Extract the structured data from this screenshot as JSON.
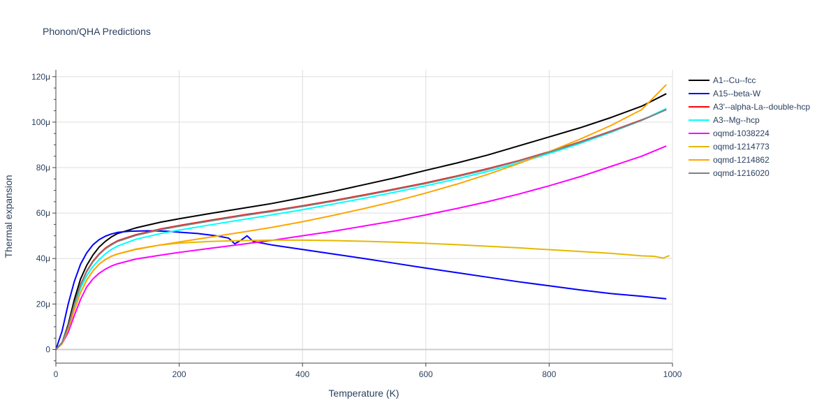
{
  "chart_data": {
    "type": "line",
    "title": "Phonon/QHA Predictions",
    "xlabel": "Temperature (K)",
    "ylabel": "Thermal expansion",
    "xlim": [
      0,
      1000
    ],
    "ylim": [
      -6,
      123
    ],
    "x_ticks": [
      0,
      200,
      400,
      600,
      800,
      1000
    ],
    "x_tick_labels": [
      "0",
      "200",
      "400",
      "600",
      "800",
      "1000"
    ],
    "y_ticks": [
      0,
      20,
      40,
      60,
      80,
      100,
      120
    ],
    "y_tick_labels": [
      "0",
      "20μ",
      "40μ",
      "60μ",
      "80μ",
      "100μ",
      "120μ"
    ],
    "grid": true,
    "legend_position": "right",
    "series": [
      {
        "name": "A1--Cu--fcc",
        "color": "#000000",
        "points": [
          [
            0,
            0
          ],
          [
            10,
            3
          ],
          [
            20,
            11
          ],
          [
            30,
            22
          ],
          [
            40,
            31
          ],
          [
            50,
            37
          ],
          [
            60,
            41.5
          ],
          [
            70,
            45
          ],
          [
            80,
            47.5
          ],
          [
            90,
            49.5
          ],
          [
            100,
            51
          ],
          [
            130,
            53.5
          ],
          [
            170,
            56
          ],
          [
            200,
            57.5
          ],
          [
            250,
            59.8
          ],
          [
            300,
            62
          ],
          [
            350,
            64.2
          ],
          [
            400,
            66.8
          ],
          [
            450,
            69.5
          ],
          [
            500,
            72.5
          ],
          [
            550,
            75.5
          ],
          [
            600,
            78.8
          ],
          [
            650,
            82
          ],
          [
            700,
            85.5
          ],
          [
            750,
            89.5
          ],
          [
            800,
            93.5
          ],
          [
            850,
            97.5
          ],
          [
            900,
            102
          ],
          [
            950,
            107
          ],
          [
            990,
            112.5
          ]
        ]
      },
      {
        "name": "A15--beta-W",
        "color": "#0000ff",
        "points": [
          [
            0,
            0
          ],
          [
            10,
            8
          ],
          [
            20,
            20
          ],
          [
            30,
            30
          ],
          [
            40,
            37.5
          ],
          [
            50,
            42.5
          ],
          [
            60,
            46
          ],
          [
            70,
            48.3
          ],
          [
            80,
            49.8
          ],
          [
            90,
            50.8
          ],
          [
            100,
            51.5
          ],
          [
            120,
            52
          ],
          [
            150,
            52.2
          ],
          [
            180,
            52
          ],
          [
            200,
            51.6
          ],
          [
            230,
            51
          ],
          [
            260,
            50
          ],
          [
            280,
            49
          ],
          [
            290,
            46.5
          ],
          [
            300,
            48
          ],
          [
            310,
            50
          ],
          [
            320,
            47.5
          ],
          [
            350,
            46
          ],
          [
            400,
            44
          ],
          [
            450,
            42
          ],
          [
            500,
            40
          ],
          [
            550,
            37.9
          ],
          [
            600,
            35.8
          ],
          [
            650,
            33.8
          ],
          [
            700,
            31.8
          ],
          [
            750,
            29.8
          ],
          [
            800,
            28
          ],
          [
            850,
            26.2
          ],
          [
            900,
            24.6
          ],
          [
            950,
            23.4
          ],
          [
            990,
            22.3
          ]
        ]
      },
      {
        "name": "A3'--alpha-La--double-hcp",
        "color": "#ff0000",
        "points": [
          [
            0,
            0
          ],
          [
            10,
            3
          ],
          [
            20,
            10
          ],
          [
            30,
            20
          ],
          [
            40,
            28.5
          ],
          [
            50,
            34.5
          ],
          [
            60,
            38.8
          ],
          [
            70,
            42
          ],
          [
            80,
            44.5
          ],
          [
            90,
            46.3
          ],
          [
            100,
            47.8
          ],
          [
            130,
            50.5
          ],
          [
            170,
            53
          ],
          [
            200,
            54.5
          ],
          [
            250,
            56.8
          ],
          [
            300,
            59
          ],
          [
            350,
            61
          ],
          [
            400,
            63.2
          ],
          [
            450,
            65.5
          ],
          [
            500,
            68
          ],
          [
            550,
            70.6
          ],
          [
            600,
            73.3
          ],
          [
            650,
            76.3
          ],
          [
            700,
            79.5
          ],
          [
            750,
            83
          ],
          [
            800,
            87
          ],
          [
            850,
            91.3
          ],
          [
            900,
            96
          ],
          [
            950,
            101
          ],
          [
            990,
            105.5
          ]
        ]
      },
      {
        "name": "A3--Mg--hcp",
        "color": "#00ffff",
        "points": [
          [
            0,
            0
          ],
          [
            10,
            3
          ],
          [
            20,
            10
          ],
          [
            30,
            19
          ],
          [
            40,
            27
          ],
          [
            50,
            32.5
          ],
          [
            60,
            36.5
          ],
          [
            70,
            39.5
          ],
          [
            80,
            42
          ],
          [
            90,
            44
          ],
          [
            100,
            45.5
          ],
          [
            130,
            48.5
          ],
          [
            170,
            51
          ],
          [
            200,
            52.5
          ],
          [
            250,
            54.8
          ],
          [
            300,
            57
          ],
          [
            350,
            59.2
          ],
          [
            400,
            61.5
          ],
          [
            450,
            64
          ],
          [
            500,
            66.5
          ],
          [
            550,
            69.2
          ],
          [
            600,
            72
          ],
          [
            650,
            75
          ],
          [
            700,
            78.3
          ],
          [
            750,
            82
          ],
          [
            800,
            86.2
          ],
          [
            850,
            90.6
          ],
          [
            900,
            95.5
          ],
          [
            950,
            100.8
          ],
          [
            990,
            106
          ]
        ]
      },
      {
        "name": "oqmd-1038224",
        "color": "#ff00ff",
        "points": [
          [
            0,
            0
          ],
          [
            10,
            2.5
          ],
          [
            20,
            7.5
          ],
          [
            30,
            15
          ],
          [
            40,
            22
          ],
          [
            50,
            27.5
          ],
          [
            60,
            31
          ],
          [
            70,
            33.5
          ],
          [
            80,
            35.3
          ],
          [
            90,
            36.7
          ],
          [
            100,
            37.7
          ],
          [
            130,
            39.8
          ],
          [
            170,
            41.5
          ],
          [
            200,
            42.7
          ],
          [
            250,
            44.5
          ],
          [
            300,
            46.2
          ],
          [
            350,
            48
          ],
          [
            400,
            50
          ],
          [
            450,
            52
          ],
          [
            500,
            54.3
          ],
          [
            550,
            56.6
          ],
          [
            600,
            59.2
          ],
          [
            650,
            62
          ],
          [
            700,
            65
          ],
          [
            750,
            68.3
          ],
          [
            800,
            72
          ],
          [
            850,
            76
          ],
          [
            900,
            80.5
          ],
          [
            950,
            85
          ],
          [
            990,
            89.5
          ]
        ]
      },
      {
        "name": "oqmd-1214773",
        "color": "#e6b800",
        "points": [
          [
            0,
            0
          ],
          [
            10,
            2.5
          ],
          [
            20,
            9
          ],
          [
            30,
            17.5
          ],
          [
            40,
            25
          ],
          [
            50,
            30.5
          ],
          [
            60,
            34.5
          ],
          [
            70,
            37.5
          ],
          [
            80,
            39.5
          ],
          [
            90,
            41
          ],
          [
            100,
            42
          ],
          [
            130,
            44.2
          ],
          [
            170,
            46
          ],
          [
            200,
            46.8
          ],
          [
            250,
            47.5
          ],
          [
            300,
            47.9
          ],
          [
            350,
            48.1
          ],
          [
            400,
            48.1
          ],
          [
            450,
            47.9
          ],
          [
            500,
            47.6
          ],
          [
            550,
            47.2
          ],
          [
            600,
            46.7
          ],
          [
            650,
            46.1
          ],
          [
            700,
            45.4
          ],
          [
            750,
            44.7
          ],
          [
            800,
            43.9
          ],
          [
            850,
            43.1
          ],
          [
            900,
            42.3
          ],
          [
            950,
            41.2
          ],
          [
            970,
            41
          ],
          [
            985,
            40.2
          ],
          [
            995,
            41.3
          ]
        ]
      },
      {
        "name": "oqmd-1214862",
        "color": "#ffa500",
        "points": [
          [
            0,
            0
          ],
          [
            10,
            2.5
          ],
          [
            20,
            9
          ],
          [
            30,
            17.5
          ],
          [
            40,
            25
          ],
          [
            50,
            30.5
          ],
          [
            60,
            34.5
          ],
          [
            70,
            37.5
          ],
          [
            80,
            39.5
          ],
          [
            90,
            41
          ],
          [
            100,
            42
          ],
          [
            130,
            44
          ],
          [
            170,
            46
          ],
          [
            200,
            47.3
          ],
          [
            250,
            49.4
          ],
          [
            300,
            51.5
          ],
          [
            350,
            53.7
          ],
          [
            400,
            56.2
          ],
          [
            450,
            59
          ],
          [
            500,
            62
          ],
          [
            550,
            65.2
          ],
          [
            600,
            68.8
          ],
          [
            650,
            72.7
          ],
          [
            700,
            77
          ],
          [
            750,
            81.7
          ],
          [
            800,
            87
          ],
          [
            850,
            92.5
          ],
          [
            900,
            98.5
          ],
          [
            950,
            105.5
          ],
          [
            990,
            116.5
          ]
        ]
      },
      {
        "name": "oqmd-1216020",
        "color": "#808080",
        "points": [
          [
            0,
            0
          ],
          [
            10,
            3
          ],
          [
            20,
            10
          ],
          [
            30,
            20
          ],
          [
            40,
            28.3
          ],
          [
            50,
            34.2
          ],
          [
            60,
            38.5
          ],
          [
            70,
            41.7
          ],
          [
            80,
            44.2
          ],
          [
            90,
            46
          ],
          [
            100,
            47.5
          ],
          [
            130,
            50.2
          ],
          [
            170,
            52.7
          ],
          [
            200,
            54.2
          ],
          [
            250,
            56.5
          ],
          [
            300,
            58.7
          ],
          [
            350,
            60.7
          ],
          [
            400,
            62.9
          ],
          [
            450,
            65.2
          ],
          [
            500,
            67.7
          ],
          [
            550,
            70.3
          ],
          [
            600,
            73
          ],
          [
            650,
            76
          ],
          [
            700,
            79.2
          ],
          [
            750,
            82.8
          ],
          [
            800,
            86.8
          ],
          [
            850,
            91.1
          ],
          [
            900,
            95.8
          ],
          [
            950,
            100.8
          ],
          [
            990,
            105.5
          ]
        ]
      }
    ]
  }
}
